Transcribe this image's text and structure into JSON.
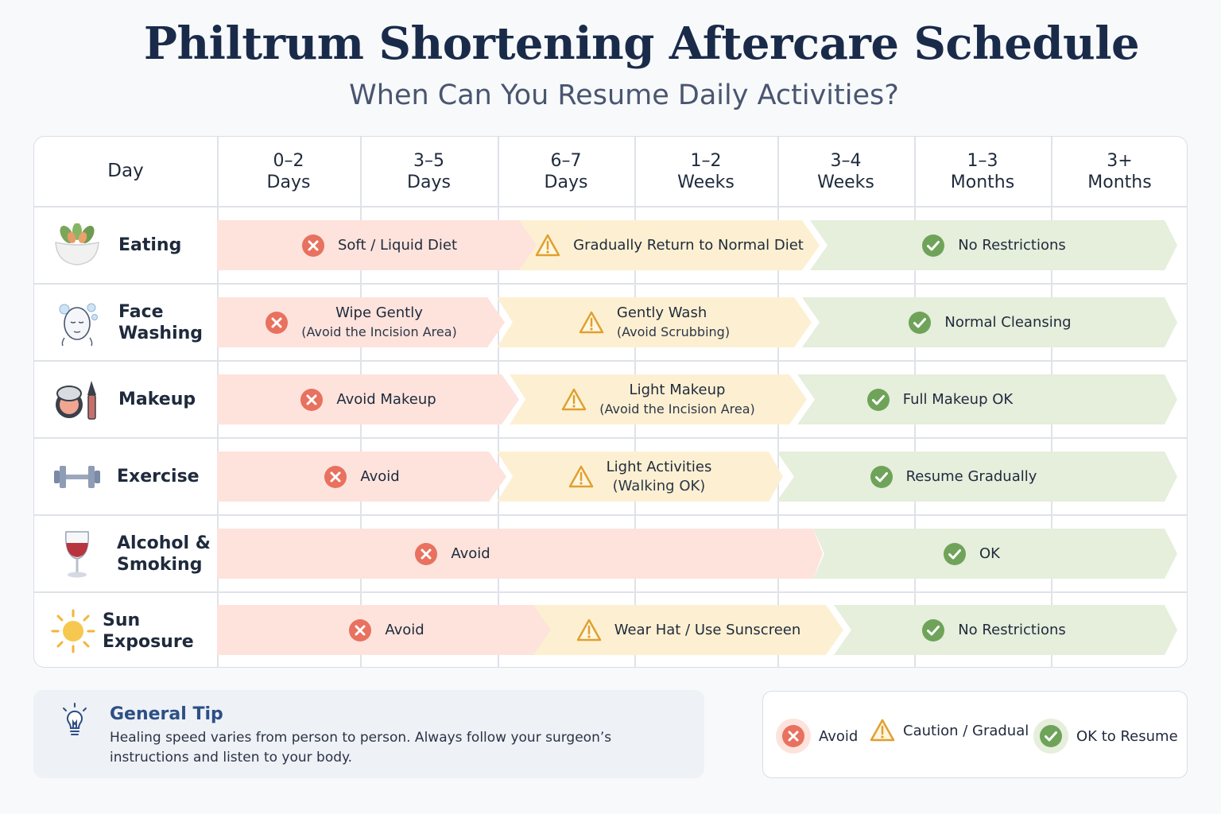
{
  "title": "Philtrum Shortening Aftercare Schedule",
  "subtitle": "When Can You Resume Daily Activities?",
  "header": {
    "day": "Day",
    "periods": [
      {
        "top": "0–2",
        "bottom": "Days"
      },
      {
        "top": "3–5",
        "bottom": "Days"
      },
      {
        "top": "6–7",
        "bottom": "Days"
      },
      {
        "top": "1–2",
        "bottom": "Weeks"
      },
      {
        "top": "3–4",
        "bottom": "Weeks"
      },
      {
        "top": "1–3",
        "bottom": "Months"
      },
      {
        "top": "3+",
        "bottom": "Months"
      }
    ]
  },
  "rows": [
    {
      "label": "Eating",
      "icon": "salad-bowl-icon",
      "bars": [
        {
          "status": "avoid",
          "text": "Soft / Liquid Diet",
          "sub": ""
        },
        {
          "status": "caution",
          "text": "Gradually Return to Normal Diet",
          "sub": ""
        },
        {
          "status": "ok",
          "text": "No Restrictions",
          "sub": ""
        }
      ]
    },
    {
      "label": "Face Washing",
      "icon": "face-washing-icon",
      "bars": [
        {
          "status": "avoid",
          "text": "Wipe Gently",
          "sub": "(Avoid the Incision Area)"
        },
        {
          "status": "caution",
          "text": "Gently Wash",
          "sub": "(Avoid Scrubbing)"
        },
        {
          "status": "ok",
          "text": "Normal Cleansing",
          "sub": ""
        }
      ]
    },
    {
      "label": "Makeup",
      "icon": "makeup-compact-icon",
      "bars": [
        {
          "status": "avoid",
          "text": "Avoid Makeup",
          "sub": ""
        },
        {
          "status": "caution",
          "text": "Light Makeup",
          "sub": "(Avoid the Incision Area)"
        },
        {
          "status": "ok",
          "text": "Full Makeup OK",
          "sub": ""
        }
      ]
    },
    {
      "label": "Exercise",
      "icon": "dumbbell-icon",
      "bars": [
        {
          "status": "avoid",
          "text": "Avoid",
          "sub": ""
        },
        {
          "status": "caution",
          "text": "Light Activities",
          "sub": "(Walking OK)"
        },
        {
          "status": "ok",
          "text": "Resume Gradually",
          "sub": ""
        }
      ]
    },
    {
      "label": "Alcohol & Smoking",
      "icon": "wine-glass-icon",
      "bars": [
        {
          "status": "avoid",
          "text": "Avoid",
          "sub": ""
        },
        {
          "status": "ok",
          "text": "OK",
          "sub": ""
        }
      ]
    },
    {
      "label": "Sun Exposure",
      "icon": "sun-icon",
      "bars": [
        {
          "status": "avoid",
          "text": "Avoid",
          "sub": ""
        },
        {
          "status": "caution",
          "text": "Wear Hat / Use Sunscreen",
          "sub": ""
        },
        {
          "status": "ok",
          "text": "No Restrictions",
          "sub": ""
        }
      ]
    }
  ],
  "tip": {
    "title": "General Tip",
    "text": "Healing speed varies from person to person. Always follow your surgeon’s instructions and listen to your body.",
    "icon": "lightbulb-icon"
  },
  "legend": [
    {
      "status": "avoid",
      "label": "Avoid",
      "icon": "x-circle-icon"
    },
    {
      "status": "caution",
      "label": "Caution / Gradual",
      "icon": "warning-triangle-icon"
    },
    {
      "status": "ok",
      "label": "OK to Resume",
      "icon": "check-circle-icon"
    }
  ],
  "colors": {
    "avoid_bg": "#fde3dc",
    "avoid_icon": "#e8715f",
    "caution_bg": "#fdf0d2",
    "caution_icon": "#e0a030",
    "ok_bg": "#e6eedc",
    "ok_icon": "#6fa35a",
    "title": "#1a2b4a"
  }
}
